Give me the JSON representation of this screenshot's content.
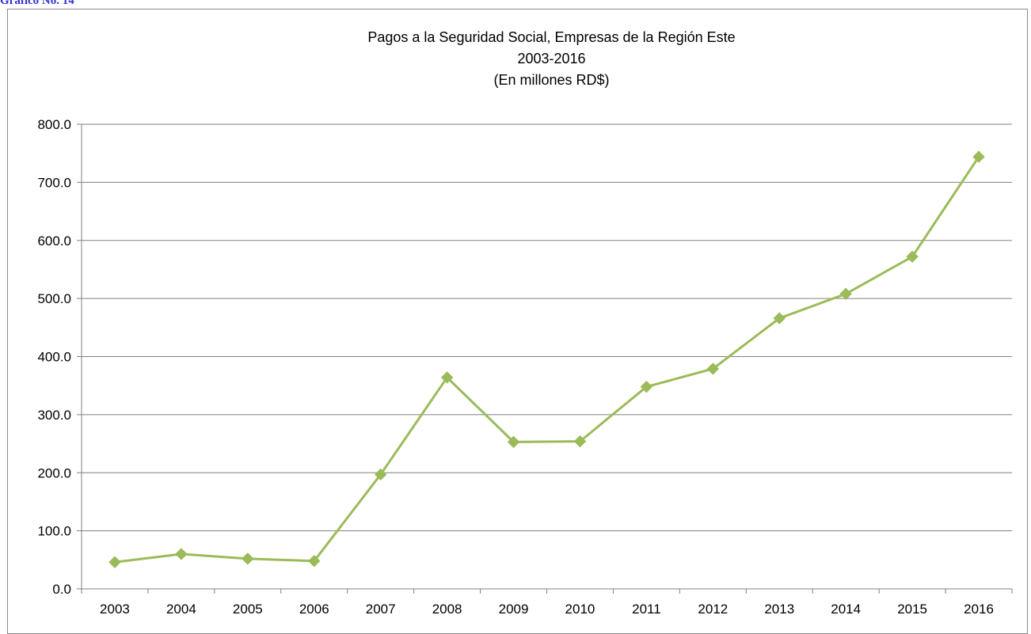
{
  "page": {
    "top_label": "Grafico No. 14"
  },
  "chart_data": {
    "type": "line",
    "title": [
      "Pagos a la Seguridad Social, Empresas de la Región Este",
      "2003-2016",
      "(En millones RD$)"
    ],
    "xlabel": "",
    "ylabel": "",
    "categories": [
      "2003",
      "2004",
      "2005",
      "2006",
      "2007",
      "2008",
      "2009",
      "2010",
      "2011",
      "2012",
      "2013",
      "2014",
      "2015",
      "2016"
    ],
    "series": [
      {
        "values": [
          46,
          60,
          52,
          48,
          197,
          364,
          253,
          254,
          348,
          379,
          466,
          508,
          572,
          744
        ]
      }
    ],
    "ylim": [
      0,
      800
    ],
    "yticks": [
      0,
      100,
      200,
      300,
      400,
      500,
      600,
      700,
      800
    ],
    "ytick_labels": [
      "0.0",
      "100.0",
      "200.0",
      "300.0",
      "400.0",
      "500.0",
      "600.0",
      "700.0",
      "800.0"
    ],
    "grid": true,
    "legend": "none",
    "colors": {
      "line": "#9bbb59",
      "marker": "#9bbb59",
      "grid": "#808080",
      "axis": "#808080"
    },
    "marker": "diamond"
  }
}
